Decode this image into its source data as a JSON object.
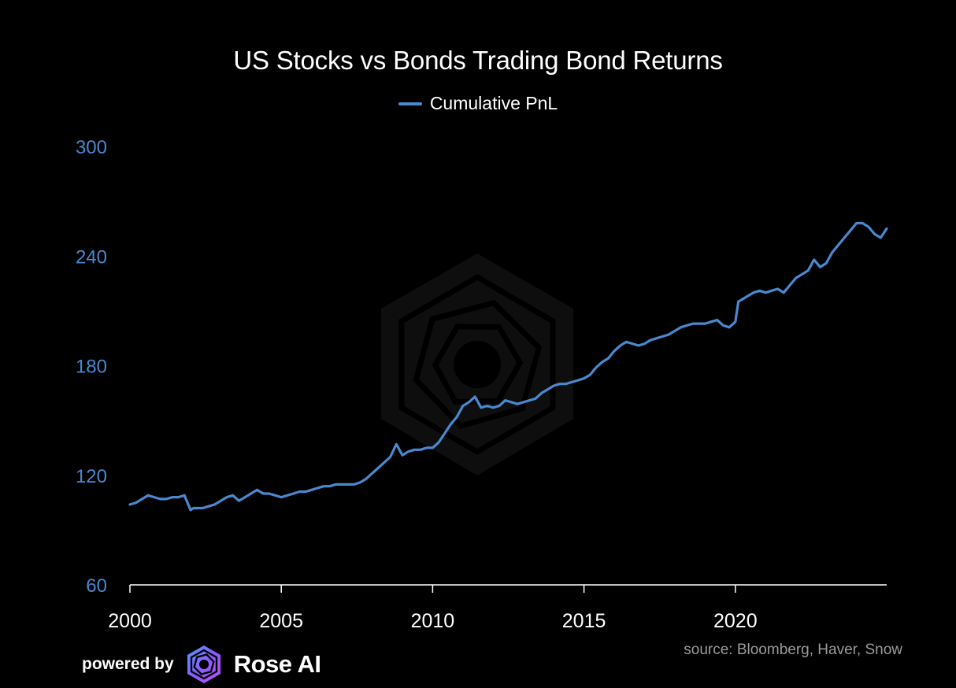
{
  "footer": {
    "powered_label": "powered by",
    "brand": "Rose AI",
    "source": "source: Bloomberg, Haver, Snow"
  },
  "colors": {
    "background": "#000000",
    "line": "#4a88d0",
    "ytick": "#4a88d0",
    "xtick": "#ffffff",
    "source": "#9a9a9a"
  },
  "chart_data": {
    "type": "line",
    "title": "US Stocks vs Bonds Trading Bond Returns",
    "legend_position": "top-center",
    "grid": false,
    "xlim": [
      2000,
      2025.0
    ],
    "ylim": [
      60,
      300
    ],
    "xticks": [
      2000,
      2005,
      2010,
      2015,
      2020
    ],
    "xtick_labels": [
      "2000",
      "2005",
      "2010",
      "2015",
      "2020"
    ],
    "yticks": [
      60,
      120,
      180,
      240,
      300
    ],
    "ytick_labels": [
      "60",
      "120",
      "180",
      "240",
      "300"
    ],
    "series": [
      {
        "name": "Cumulative PnL",
        "x": [
          2000.0,
          2000.2,
          2000.4,
          2000.6,
          2000.8,
          2001.0,
          2001.2,
          2001.4,
          2001.6,
          2001.8,
          2002.0,
          2002.1,
          2002.2,
          2002.4,
          2002.6,
          2002.8,
          2003.0,
          2003.2,
          2003.4,
          2003.6,
          2003.8,
          2004.0,
          2004.2,
          2004.4,
          2004.6,
          2004.8,
          2005.0,
          2005.2,
          2005.4,
          2005.6,
          2005.8,
          2006.0,
          2006.2,
          2006.4,
          2006.6,
          2006.8,
          2007.0,
          2007.2,
          2007.4,
          2007.6,
          2007.8,
          2008.0,
          2008.2,
          2008.4,
          2008.6,
          2008.8,
          2009.0,
          2009.2,
          2009.4,
          2009.6,
          2009.8,
          2010.0,
          2010.2,
          2010.4,
          2010.6,
          2010.8,
          2011.0,
          2011.2,
          2011.4,
          2011.6,
          2011.8,
          2012.0,
          2012.2,
          2012.4,
          2012.6,
          2012.8,
          2013.0,
          2013.2,
          2013.4,
          2013.6,
          2013.8,
          2014.0,
          2014.2,
          2014.4,
          2014.6,
          2014.8,
          2015.0,
          2015.2,
          2015.4,
          2015.6,
          2015.8,
          2016.0,
          2016.2,
          2016.4,
          2016.6,
          2016.8,
          2017.0,
          2017.2,
          2017.4,
          2017.6,
          2017.8,
          2018.0,
          2018.2,
          2018.4,
          2018.6,
          2018.8,
          2019.0,
          2019.2,
          2019.4,
          2019.6,
          2019.8,
          2020.0,
          2020.1,
          2020.2,
          2020.3,
          2020.4,
          2020.6,
          2020.8,
          2021.0,
          2021.2,
          2021.4,
          2021.6,
          2021.8,
          2022.0,
          2022.2,
          2022.4,
          2022.6,
          2022.8,
          2023.0,
          2023.2,
          2023.4,
          2023.6,
          2023.8,
          2024.0,
          2024.2,
          2024.4,
          2024.6,
          2024.8,
          2025.0
        ],
        "values": [
          104,
          105,
          107,
          109,
          108,
          107,
          107,
          108,
          108,
          109,
          101,
          102,
          102,
          102,
          103,
          104,
          106,
          108,
          109,
          106,
          108,
          110,
          112,
          110,
          110,
          109,
          108,
          109,
          110,
          111,
          111,
          112,
          113,
          114,
          114,
          115,
          115,
          115,
          115,
          116,
          118,
          121,
          124,
          127,
          130,
          137,
          131,
          133,
          134,
          134,
          135,
          135,
          138,
          143,
          148,
          152,
          158,
          160,
          163,
          157,
          158,
          157,
          158,
          161,
          160,
          159,
          160,
          161,
          162,
          165,
          167,
          169,
          170,
          170,
          171,
          172,
          173,
          175,
          179,
          182,
          184,
          188,
          191,
          193,
          192,
          191,
          192,
          194,
          195,
          196,
          197,
          199,
          201,
          202,
          203,
          203,
          203,
          204,
          205,
          202,
          201,
          204,
          215,
          216,
          217,
          218,
          220,
          221,
          220,
          221,
          222,
          220,
          224,
          228,
          230,
          232,
          238,
          234,
          236,
          242,
          246,
          250,
          254,
          258,
          258,
          256,
          252,
          250,
          255
        ]
      }
    ]
  }
}
